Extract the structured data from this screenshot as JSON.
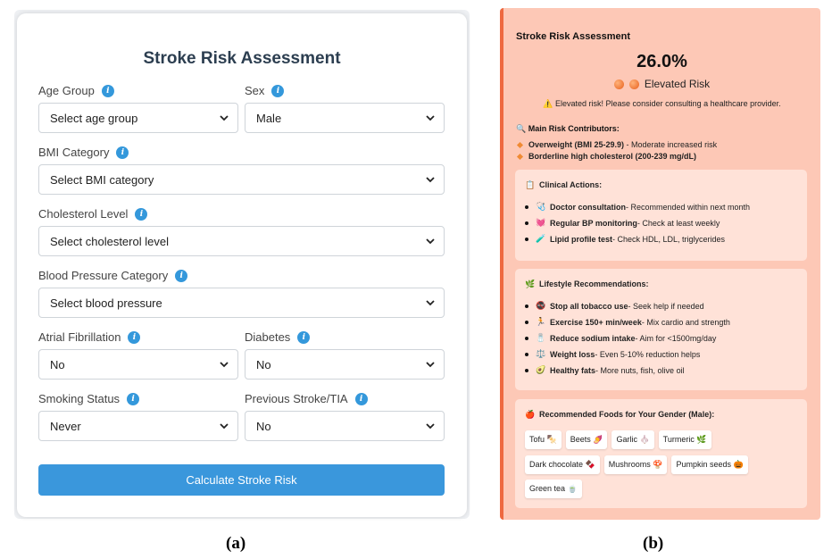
{
  "form": {
    "title": "Stroke Risk Assessment",
    "fields": [
      {
        "label": "Age Group",
        "value": "Select age group"
      },
      {
        "label": "Sex",
        "value": "Male"
      },
      {
        "label": "BMI Category",
        "value": "Select BMI category"
      },
      {
        "label": "Cholesterol Level",
        "value": "Select cholesterol level"
      },
      {
        "label": "Blood Pressure Category",
        "value": "Select blood pressure"
      },
      {
        "label": "Atrial Fibrillation",
        "value": "No"
      },
      {
        "label": "Diabetes",
        "value": "No"
      },
      {
        "label": "Smoking Status",
        "value": "Never"
      },
      {
        "label": "Previous Stroke/TIA",
        "value": "No"
      }
    ],
    "info_icon": "i",
    "submit_label": "Calculate Stroke Risk"
  },
  "result": {
    "title": "Stroke Risk Assessment",
    "percent": "26.0%",
    "level": "Elevated Risk",
    "warning": "⚠️ Elevated risk! Please consider consulting a healthcare provider.",
    "contributors_heading": "🔍 Main Risk Contributors:",
    "contributors": [
      {
        "bold": "Overweight (BMI 25-29.9)",
        "text": " - Moderate increased risk"
      },
      {
        "bold": "Borderline high cholesterol (200-239 mg/dL)",
        "text": ""
      }
    ],
    "clinical": {
      "heading": "Clinical Actions:",
      "items": [
        {
          "icon": "🩺",
          "bold": "Doctor consultation",
          "text": " - Recommended within next month"
        },
        {
          "icon": "💓",
          "bold": "Regular BP monitoring",
          "text": " - Check at least weekly"
        },
        {
          "icon": "🧪",
          "bold": "Lipid profile test",
          "text": " - Check HDL, LDL, triglycerides"
        }
      ]
    },
    "lifestyle": {
      "heading": "Lifestyle Recommendations:",
      "items": [
        {
          "icon": "🚭",
          "bold": "Stop all tobacco use",
          "text": " - Seek help if needed"
        },
        {
          "icon": "🏃",
          "bold": "Exercise 150+ min/week",
          "text": " - Mix cardio and strength"
        },
        {
          "icon": "🧂",
          "bold": "Reduce sodium intake",
          "text": " - Aim for <1500mg/day"
        },
        {
          "icon": "⚖️",
          "bold": "Weight loss",
          "text": " - Even 5-10% reduction helps"
        },
        {
          "icon": "🥑",
          "bold": "Healthy fats",
          "text": " - More nuts, fish, olive oil"
        }
      ]
    },
    "foods": {
      "heading": "Recommended Foods for Your Gender (Male):",
      "items": [
        "Tofu 🍢",
        "Beets 🍠",
        "Garlic 🧄",
        "Turmeric 🌿",
        "Dark chocolate 🍫",
        "Mushrooms 🍄",
        "Pumpkin seeds 🎃",
        "Green tea 🍵"
      ]
    }
  },
  "captions": {
    "a": "(a)",
    "b": "(b)"
  },
  "colors": {
    "accent": "#3a97dc",
    "title": "#2c3e50",
    "risk_bg": "#fdc8b6",
    "risk_border": "#ee6940",
    "sub_box": "#ffe2d8"
  }
}
